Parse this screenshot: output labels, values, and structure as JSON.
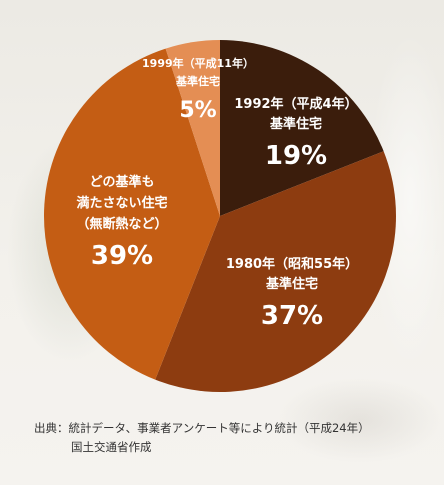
{
  "chart_data": {
    "type": "pie",
    "slices": [
      {
        "label_lines": [
          "1992年（平成4年）",
          "基準住宅"
        ],
        "value": 19,
        "value_text": "19%",
        "color": "#3b1d0c"
      },
      {
        "label_lines": [
          "1980年（昭和55年）",
          "基準住宅"
        ],
        "value": 37,
        "value_text": "37%",
        "color": "#8d3c10"
      },
      {
        "label_lines": [
          "どの基準も",
          "満たさない住宅",
          "（無断熱など）"
        ],
        "value": 39,
        "value_text": "39%",
        "color": "#c45d14"
      },
      {
        "label_lines": [
          "1999年（平成11年）",
          "基準住宅"
        ],
        "value": 5,
        "value_text": "5%",
        "color": "#e48e54"
      }
    ],
    "start_at": "12 o'clock",
    "direction": "clockwise"
  },
  "source": {
    "line1": "出典：統計データ、事業者アンケート等により統計（平成24年）",
    "line2": "国土交通省作成"
  }
}
